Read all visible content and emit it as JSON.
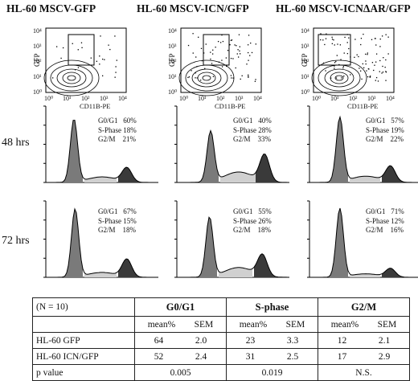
{
  "columns": [
    {
      "title": "HL-60 MSCV-GFP"
    },
    {
      "title": "HL-60 MSCV-ICN/GFP"
    },
    {
      "title": "HL-60 MSCV-ICNΔAR/GFP"
    }
  ],
  "facs": {
    "ylabel": "GFP",
    "xlabel": "CD11B-PE",
    "ticks": [
      "10⁰",
      "10¹",
      "10²",
      "10³",
      "10⁴"
    ]
  },
  "rows": [
    {
      "label": "48 hrs",
      "panels": [
        {
          "g0g1": "G0/G1   60%",
          "s": "S-Phase 18%",
          "g2m": "G2/M    21%"
        },
        {
          "g0g1": "G0/G1   40%",
          "s": "S-Phase 28%",
          "g2m": "G2/M    33%"
        },
        {
          "g0g1": "G0/G1   57%",
          "s": "S-Phase 19%",
          "g2m": "G2/M    22%"
        }
      ]
    },
    {
      "label": "72 hrs",
      "panels": [
        {
          "g0g1": "G0/G1   67%",
          "s": "S-Phase 15%",
          "g2m": "G2/M    18%"
        },
        {
          "g0g1": "G0/G1   55%",
          "s": "S-Phase 26%",
          "g2m": "G2/M    18%"
        },
        {
          "g0g1": "G0/G1   71%",
          "s": "S-Phase 12%",
          "g2m": "G2/M    16%"
        }
      ]
    }
  ],
  "table": {
    "n": "(N = 10)",
    "groups": [
      "G0/G1",
      "S-phase",
      "G2/M"
    ],
    "sub": [
      "mean%",
      "SEM"
    ],
    "data_rows": [
      {
        "name": "HL-60 GFP",
        "vals": [
          "64",
          "2.0",
          "23",
          "3.3",
          "12",
          "2.1"
        ]
      },
      {
        "name": "HL-60 ICN/GFP",
        "vals": [
          "52",
          "2.4",
          "31",
          "2.5",
          "17",
          "2.9"
        ]
      }
    ],
    "p": {
      "name": "p value",
      "vals": [
        "0.005",
        "0.019",
        "N.S."
      ]
    }
  }
}
